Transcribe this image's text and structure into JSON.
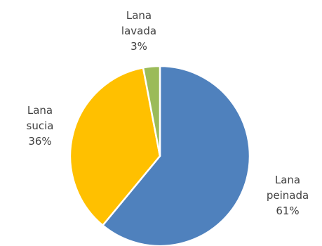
{
  "chart_data": {
    "type": "pie",
    "slices": [
      {
        "label_lines": [
          "Lana",
          "peinada"
        ],
        "value": 61,
        "value_label": "61%",
        "color": "#4F81BD"
      },
      {
        "label_lines": [
          "Lana",
          "sucia"
        ],
        "value": 36,
        "value_label": "36%",
        "color": "#FFC000"
      },
      {
        "label_lines": [
          "Lana",
          "lavada"
        ],
        "value": 3,
        "value_label": "3%",
        "color": "#9BBB59"
      }
    ],
    "legend": "none",
    "slice_border_color": "#ffffff"
  }
}
